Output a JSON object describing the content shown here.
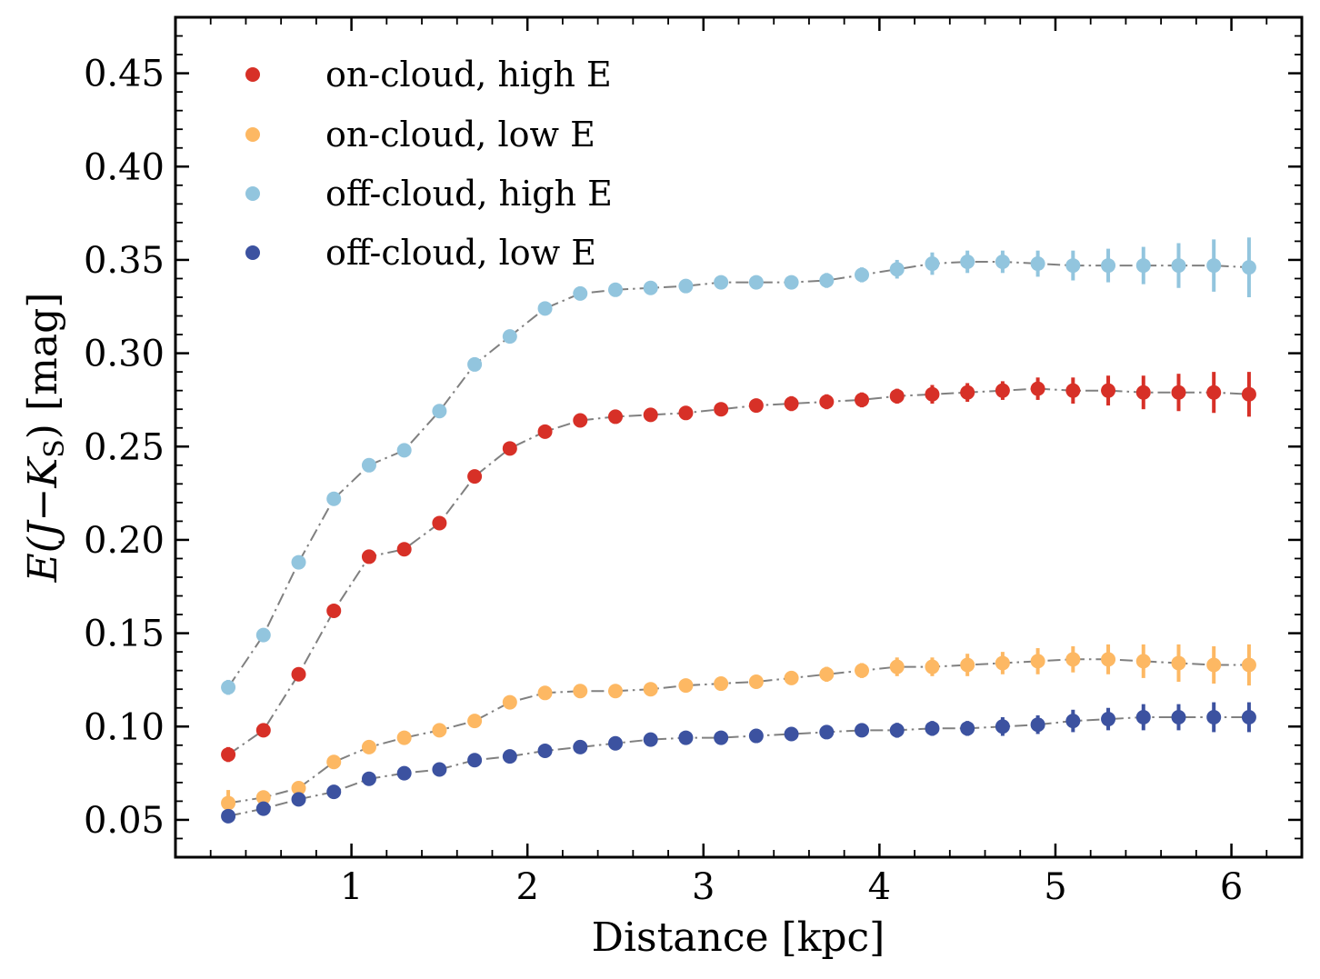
{
  "chart_data": {
    "type": "scatter",
    "title": "",
    "xlabel": "Distance [kpc]",
    "ylabel": "E(J−K",
    "ylabel_sub": "S",
    "ylabel_tail": ") [mag]",
    "xlim": [
      0,
      6.4
    ],
    "ylim": [
      0.03,
      0.48
    ],
    "xticks": [
      1,
      2,
      3,
      4,
      5,
      6
    ],
    "xtick_labels": [
      "1",
      "2",
      "3",
      "4",
      "5",
      "6"
    ],
    "yticks": [
      0.05,
      0.1,
      0.15,
      0.2,
      0.25,
      0.3,
      0.35,
      0.4,
      0.45
    ],
    "ytick_labels": [
      "0.05",
      "0.10",
      "0.15",
      "0.20",
      "0.25",
      "0.30",
      "0.35",
      "0.40",
      "0.45"
    ],
    "legend_position": "top-left",
    "connector_color": "#808080",
    "x": [
      0.3,
      0.5,
      0.7,
      0.9,
      1.1,
      1.3,
      1.5,
      1.7,
      1.9,
      2.1,
      2.3,
      2.5,
      2.7,
      2.9,
      3.1,
      3.3,
      3.5,
      3.7,
      3.9,
      4.1,
      4.3,
      4.5,
      4.7,
      4.9,
      5.1,
      5.3,
      5.5,
      5.7,
      5.9,
      6.1
    ],
    "series": [
      {
        "name": "on-cloud, high E",
        "color": "#d73027",
        "values": [
          0.085,
          0.098,
          0.128,
          0.162,
          0.191,
          0.195,
          0.209,
          0.234,
          0.249,
          0.258,
          0.264,
          0.266,
          0.267,
          0.268,
          0.27,
          0.272,
          0.273,
          0.274,
          0.275,
          0.277,
          0.278,
          0.279,
          0.28,
          0.281,
          0.28,
          0.28,
          0.279,
          0.279,
          0.279,
          0.278
        ],
        "errors": [
          0.004,
          0.002,
          0.002,
          0.002,
          0.002,
          0.002,
          0.002,
          0.002,
          0.002,
          0.002,
          0.002,
          0.003,
          0.003,
          0.003,
          0.003,
          0.003,
          0.004,
          0.004,
          0.004,
          0.004,
          0.005,
          0.005,
          0.005,
          0.006,
          0.007,
          0.008,
          0.009,
          0.01,
          0.011,
          0.012
        ]
      },
      {
        "name": "on-cloud, low E",
        "color": "#fdb863",
        "values": [
          0.059,
          0.062,
          0.067,
          0.081,
          0.089,
          0.094,
          0.098,
          0.103,
          0.113,
          0.118,
          0.119,
          0.119,
          0.12,
          0.122,
          0.123,
          0.124,
          0.126,
          0.128,
          0.13,
          0.132,
          0.132,
          0.133,
          0.134,
          0.135,
          0.136,
          0.136,
          0.135,
          0.134,
          0.133,
          0.133
        ],
        "errors": [
          0.007,
          0.003,
          0.002,
          0.002,
          0.002,
          0.002,
          0.002,
          0.002,
          0.002,
          0.002,
          0.002,
          0.002,
          0.002,
          0.003,
          0.003,
          0.003,
          0.003,
          0.004,
          0.004,
          0.005,
          0.005,
          0.006,
          0.006,
          0.007,
          0.007,
          0.008,
          0.009,
          0.01,
          0.01,
          0.011
        ]
      },
      {
        "name": "off-cloud, high E",
        "color": "#92c5de",
        "values": [
          0.121,
          0.149,
          0.188,
          0.222,
          0.24,
          0.248,
          0.269,
          0.294,
          0.309,
          0.324,
          0.332,
          0.334,
          0.335,
          0.336,
          0.338,
          0.338,
          0.338,
          0.339,
          0.342,
          0.345,
          0.348,
          0.349,
          0.349,
          0.348,
          0.347,
          0.347,
          0.347,
          0.347,
          0.347,
          0.346
        ],
        "errors": [
          0.004,
          0.002,
          0.002,
          0.002,
          0.002,
          0.002,
          0.002,
          0.002,
          0.002,
          0.002,
          0.002,
          0.002,
          0.002,
          0.002,
          0.002,
          0.003,
          0.003,
          0.004,
          0.004,
          0.005,
          0.006,
          0.006,
          0.006,
          0.007,
          0.008,
          0.009,
          0.01,
          0.012,
          0.014,
          0.016
        ]
      },
      {
        "name": "off-cloud, low E",
        "color": "#3c52a0",
        "values": [
          0.052,
          0.056,
          0.061,
          0.065,
          0.072,
          0.075,
          0.077,
          0.082,
          0.084,
          0.087,
          0.089,
          0.091,
          0.093,
          0.094,
          0.094,
          0.095,
          0.096,
          0.097,
          0.098,
          0.098,
          0.099,
          0.099,
          0.1,
          0.101,
          0.103,
          0.104,
          0.105,
          0.105,
          0.105,
          0.105
        ],
        "errors": [
          0.002,
          0.002,
          0.002,
          0.002,
          0.002,
          0.002,
          0.002,
          0.002,
          0.002,
          0.002,
          0.002,
          0.002,
          0.002,
          0.002,
          0.002,
          0.003,
          0.003,
          0.003,
          0.003,
          0.004,
          0.004,
          0.004,
          0.005,
          0.005,
          0.006,
          0.006,
          0.007,
          0.007,
          0.008,
          0.008
        ]
      }
    ]
  }
}
